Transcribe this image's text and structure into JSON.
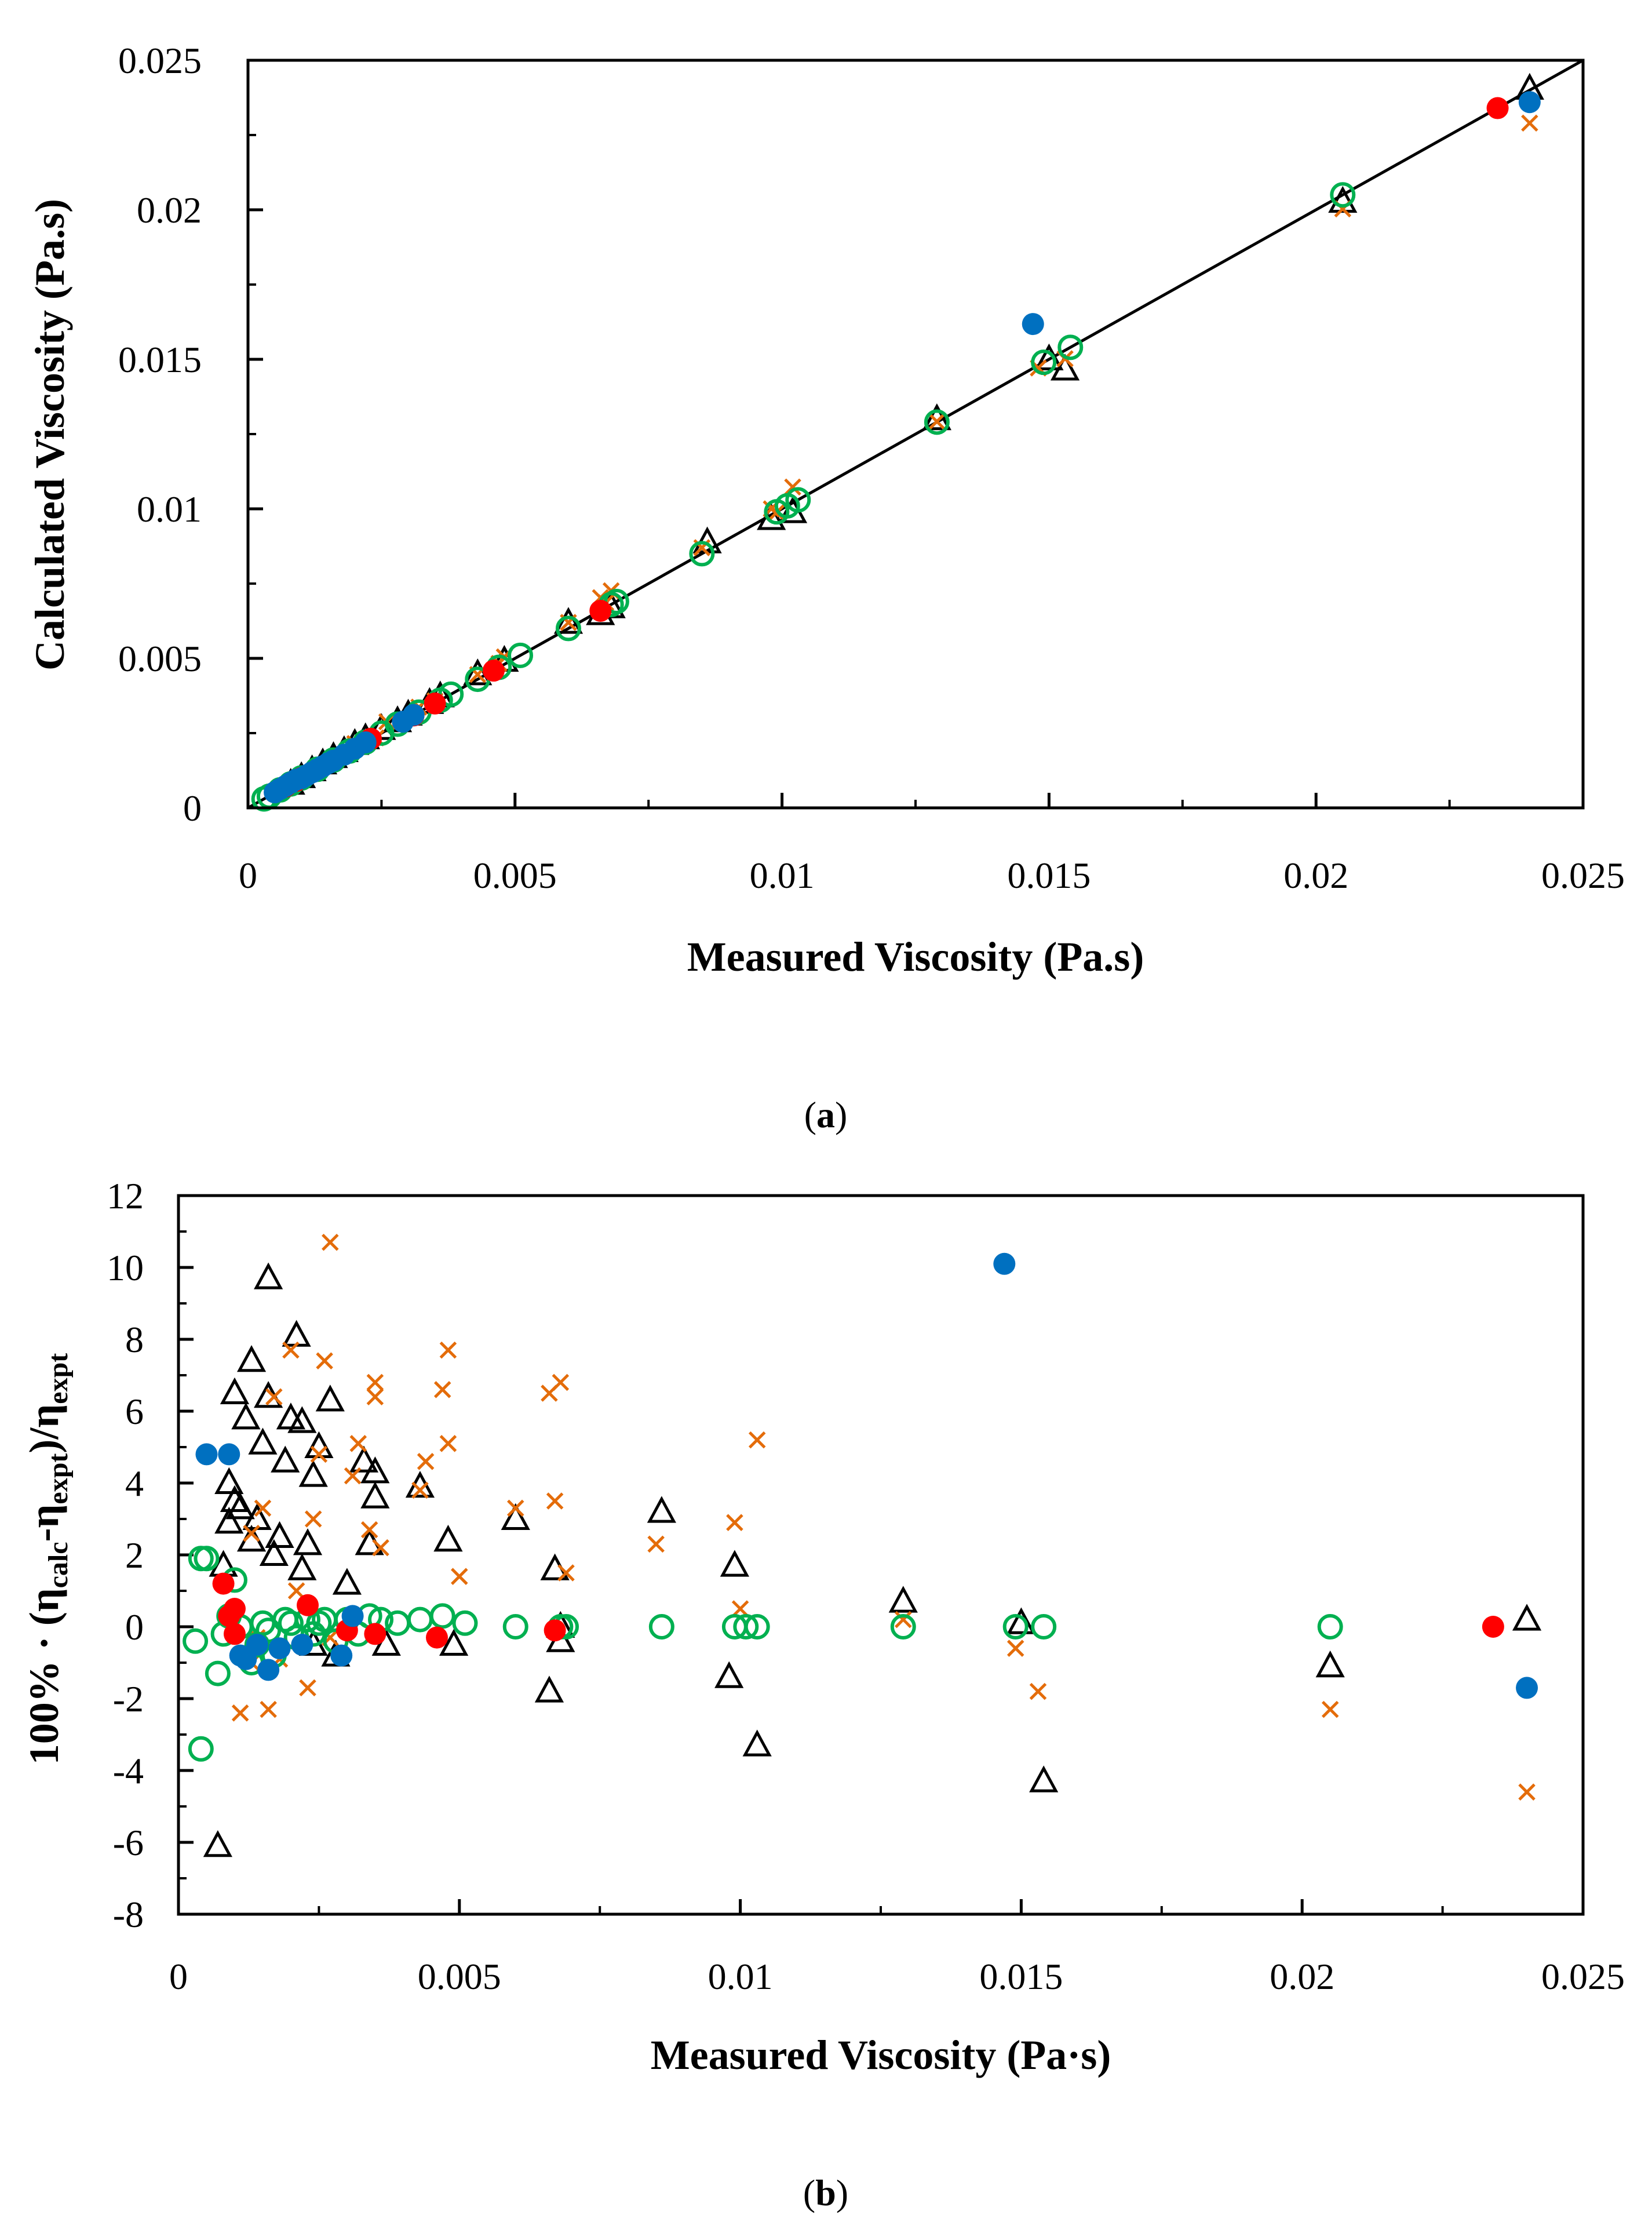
{
  "chart_data": [
    {
      "panel": "a",
      "type": "scatter",
      "caption_letter": "a",
      "xlabel": "Measured Viscosity (Pa.s)",
      "ylabel": "Calculated Viscosity (Pa.s)",
      "xlim": [
        0,
        0.025
      ],
      "ylim": [
        0,
        0.025
      ],
      "x_ticks": [
        "0",
        "0.005",
        "0.01",
        "0.015",
        "0.02",
        "0.025"
      ],
      "y_ticks": [
        "0",
        "0.005",
        "0.01",
        "0.015",
        "0.02",
        "0.025"
      ],
      "grid": false,
      "legend": "none",
      "reference_line": {
        "x": [
          0,
          0.025
        ],
        "y": [
          0,
          0.025
        ]
      },
      "series": [
        {
          "marker": "triangle-open",
          "color": "#000000",
          "x": [
            0.0008,
            0.001,
            0.0012,
            0.0014,
            0.0016,
            0.0018,
            0.002,
            0.0022,
            0.0025,
            0.0028,
            0.003,
            0.0034,
            0.0036,
            0.0043,
            0.0048,
            0.006,
            0.0066,
            0.0068,
            0.0086,
            0.0098,
            0.0102,
            0.0129,
            0.015,
            0.0153,
            0.0205,
            0.024
          ],
          "y": [
            0.00081,
            0.00103,
            0.00126,
            0.00149,
            0.0017,
            0.0019,
            0.00214,
            0.00233,
            0.00264,
            0.0029,
            0.00312,
            0.00351,
            0.00373,
            0.00447,
            0.00492,
            0.00619,
            0.00648,
            0.00671,
            0.00888,
            0.00966,
            0.00989,
            0.013,
            0.015,
            0.01466,
            0.02027,
            0.02405
          ]
        },
        {
          "marker": "x",
          "color": "#E46C0A",
          "x": [
            0.0011,
            0.0013,
            0.0016,
            0.002,
            0.0024,
            0.0026,
            0.0032,
            0.0035,
            0.0043,
            0.0047,
            0.0048,
            0.006,
            0.0066,
            0.0067,
            0.0068,
            0.0085,
            0.0098,
            0.0099,
            0.0102,
            0.0129,
            0.0148,
            0.0153,
            0.0205,
            0.024
          ],
          "y": [
            0.00107,
            0.00133,
            0.00163,
            0.00215,
            0.00234,
            0.00288,
            0.00337,
            0.00358,
            0.00446,
            0.00483,
            0.00505,
            0.0062,
            0.00703,
            0.00686,
            0.00726,
            0.0087,
            0.01,
            0.00988,
            0.01073,
            0.01292,
            0.01471,
            0.01502,
            0.02003,
            0.0229
          ]
        },
        {
          "marker": "circle-open",
          "color": "#00B050",
          "x": [
            0.0003,
            0.0004,
            0.0006,
            0.0008,
            0.001,
            0.0013,
            0.0016,
            0.0019,
            0.0022,
            0.0025,
            0.0028,
            0.0032,
            0.0036,
            0.0038,
            0.0043,
            0.0047,
            0.0051,
            0.006,
            0.0068,
            0.0069,
            0.0085,
            0.0099,
            0.0101,
            0.0103,
            0.0129,
            0.0149,
            0.0154,
            0.0205
          ],
          "y": [
            0.0003,
            0.00039,
            0.0006,
            0.0008,
            0.001,
            0.00129,
            0.0016,
            0.0019,
            0.0022,
            0.0025,
            0.0028,
            0.0032,
            0.0036,
            0.0038,
            0.0043,
            0.0047,
            0.0051,
            0.006,
            0.0068,
            0.0069,
            0.0085,
            0.0099,
            0.0101,
            0.0103,
            0.0129,
            0.0149,
            0.0154,
            0.0205
          ]
        },
        {
          "marker": "circle-filled",
          "color": "#FF0000",
          "x": [
            0.0007,
            0.0009,
            0.001,
            0.0023,
            0.0031,
            0.0035,
            0.0046,
            0.0066,
            0.0234
          ],
          "y": [
            0.00071,
            0.0009,
            0.001,
            0.00231,
            0.00309,
            0.00349,
            0.00459,
            0.00659,
            0.0234
          ]
        },
        {
          "marker": "circle-filled",
          "color": "#0070C0",
          "x": [
            0.0005,
            0.0006,
            0.0007,
            0.0008,
            0.0009,
            0.001,
            0.0011,
            0.0012,
            0.0013,
            0.0014,
            0.0015,
            0.0016,
            0.0018,
            0.002,
            0.0022,
            0.0029,
            0.0031,
            0.0147,
            0.024
          ],
          "y": [
            0.00052,
            0.00063,
            0.00073,
            0.00084,
            0.00094,
            0.00099,
            0.00109,
            0.00119,
            0.00129,
            0.00139,
            0.00149,
            0.00158,
            0.00178,
            0.00198,
            0.00219,
            0.00288,
            0.00311,
            0.01618,
            0.0236
          ]
        }
      ]
    },
    {
      "panel": "b",
      "type": "scatter",
      "caption_letter": "b",
      "xlabel": "Measured Viscosity (Pa·s)",
      "ylabel": {
        "prefix": "100% · (η",
        "calc": "calc",
        "mid": "-η",
        "expt1": "expt",
        "close": ")/η",
        "expt2": "expt"
      },
      "xlim": [
        0,
        0.025
      ],
      "ylim": [
        -8,
        12
      ],
      "x_ticks": [
        "0",
        "0.005",
        "0.01",
        "0.015",
        "0.02",
        "0.025"
      ],
      "y_ticks": [
        "-8",
        "-6",
        "-4",
        "-2",
        "0",
        "2",
        "4",
        "6",
        "8",
        "10",
        "12"
      ],
      "grid": false,
      "legend": "none",
      "series": [
        {
          "marker": "triangle-open",
          "color": "#000000",
          "x": [
            0.0007,
            0.0008,
            0.0009,
            0.0009,
            0.001,
            0.001,
            0.0011,
            0.0012,
            0.0013,
            0.0013,
            0.0014,
            0.0015,
            0.0016,
            0.0016,
            0.0017,
            0.0018,
            0.0019,
            0.002,
            0.0021,
            0.0022,
            0.0022,
            0.0023,
            0.0024,
            0.0024,
            0.0025,
            0.0027,
            0.0028,
            0.003,
            0.0033,
            0.0034,
            0.0035,
            0.0035,
            0.0037,
            0.0043,
            0.0048,
            0.0049,
            0.006,
            0.0066,
            0.0067,
            0.0068,
            0.0068,
            0.0086,
            0.0098,
            0.0099,
            0.0103,
            0.0129,
            0.015,
            0.0154,
            0.0205,
            0.024
          ],
          "y": [
            -6.1,
            1.7,
            4,
            2.9,
            3.5,
            6.5,
            3.3,
            5.8,
            7.4,
            2.4,
            3,
            5.1,
            6.4,
            9.7,
            2,
            2.5,
            4.6,
            5.8,
            8.1,
            1.6,
            5.7,
            2.3,
            4.2,
            -0.5,
            5,
            6.3,
            -0.8,
            1.2,
            4.6,
            2.3,
            4.3,
            3.6,
            -0.5,
            3.9,
            2.4,
            -0.5,
            3,
            -1.8,
            1.6,
            -0.4,
            0,
            3.2,
            -1.4,
            1.7,
            -3.3,
            0.7,
            0.1,
            -4.3,
            -1.1,
            0.2
          ]
        },
        {
          "marker": "x",
          "color": "#E46C0A",
          "x": [
            0.0011,
            0.0013,
            0.0013,
            0.0014,
            0.0015,
            0.0016,
            0.0017,
            0.0018,
            0.002,
            0.0021,
            0.0023,
            0.0024,
            0.0025,
            0.0026,
            0.0027,
            0.0027,
            0.0031,
            0.0032,
            0.0034,
            0.0035,
            0.0035,
            0.0036,
            0.0043,
            0.0044,
            0.0047,
            0.0048,
            0.0048,
            0.005,
            0.006,
            0.0066,
            0.0067,
            0.0068,
            0.0069,
            0.0085,
            0.0099,
            0.01,
            0.0103,
            0.0129,
            0.0149,
            0.0153,
            0.0205,
            0.024
          ],
          "y": [
            -2.4,
            -1,
            2.6,
            -0.3,
            3.3,
            -2.3,
            6.4,
            -0.9,
            7.7,
            1,
            -1.7,
            3,
            4.8,
            7.4,
            10.7,
            -0.3,
            4.2,
            5.1,
            2.7,
            6.8,
            6.4,
            2.2,
            3.8,
            4.6,
            6.6,
            7.7,
            5.1,
            1.4,
            3.3,
            6.5,
            3.5,
            6.8,
            1.5,
            2.3,
            2.9,
            0.5,
            5.2,
            0.2,
            -0.6,
            -1.8,
            -2.3,
            -4.6
          ]
        },
        {
          "marker": "circle-open",
          "color": "#00B050",
          "x": [
            0.0003,
            0.0004,
            0.0004,
            0.0005,
            0.0007,
            0.0008,
            0.0009,
            0.001,
            0.0011,
            0.0013,
            0.0014,
            0.0015,
            0.0016,
            0.0017,
            0.0019,
            0.002,
            0.0021,
            0.0023,
            0.0024,
            0.0025,
            0.0026,
            0.0028,
            0.003,
            0.0032,
            0.0034,
            0.0036,
            0.0039,
            0.0043,
            0.0047,
            0.0051,
            0.006,
            0.0068,
            0.0069,
            0.0086,
            0.0099,
            0.0101,
            0.0103,
            0.0129,
            0.0149,
            0.0154,
            0.0205
          ],
          "y": [
            -0.4,
            1.9,
            -3.4,
            1.9,
            -1.3,
            -0.2,
            0.3,
            1.3,
            0,
            -1,
            -0.5,
            0.1,
            -0.1,
            -0.8,
            0.2,
            0.1,
            -0.3,
            0.2,
            -0.2,
            0.1,
            0.2,
            -0.4,
            0.2,
            -0.2,
            0.3,
            0.2,
            0.1,
            0.2,
            0.3,
            0.1,
            0,
            0,
            0,
            0,
            0,
            0,
            0,
            0,
            0,
            0,
            0
          ]
        },
        {
          "marker": "circle-filled",
          "color": "#FF0000",
          "x": [
            0.0008,
            0.0009,
            0.001,
            0.001,
            0.0023,
            0.003,
            0.0035,
            0.0046,
            0.0067,
            0.0234
          ],
          "y": [
            1.2,
            0.3,
            0.5,
            -0.2,
            0.6,
            -0.1,
            -0.2,
            -0.3,
            -0.1,
            0
          ]
        },
        {
          "marker": "circle-filled",
          "color": "#0070C0",
          "x": [
            0.0005,
            0.0009,
            0.0011,
            0.0012,
            0.0014,
            0.0016,
            0.0018,
            0.0022,
            0.0029,
            0.0031,
            0.0147,
            0.024
          ],
          "y": [
            4.8,
            4.8,
            -0.8,
            -0.9,
            -0.5,
            -1.2,
            -0.6,
            -0.5,
            -0.8,
            0.3,
            10.1,
            -1.7
          ]
        }
      ]
    }
  ]
}
